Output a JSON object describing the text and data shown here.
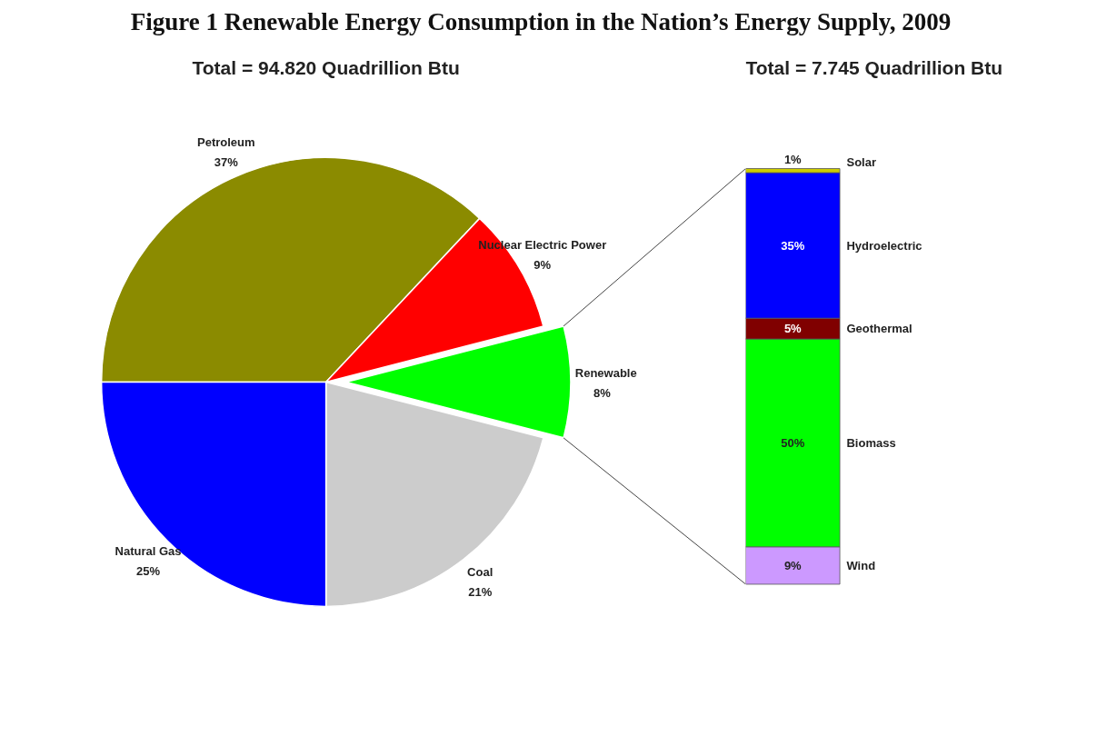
{
  "chart_data": [
    {
      "type": "pie",
      "title": "Figure 1 Renewable Energy Consumption in the Nation’s Energy Supply, 2009",
      "subtitle": "Total = 94.820 Quadrillion Btu",
      "categories": [
        "Petroleum",
        "Nuclear Electric Power",
        "Renewable",
        "Coal",
        "Natural Gas"
      ],
      "values": [
        37,
        9,
        8,
        21,
        25
      ],
      "colors": [
        "#8b8b00",
        "#ff0000",
        "#00ff00",
        "#cccccc",
        "#0000ff"
      ],
      "value_labels": [
        "37%",
        "9%",
        "8%",
        "21%",
        "25%"
      ]
    },
    {
      "type": "bar",
      "subtitle": "Total = 7.745 Quadrillion Btu",
      "stacked": true,
      "categories": [
        null
      ],
      "series": [
        {
          "name": "Wind",
          "color": "#cc99ff",
          "values": [
            9
          ],
          "value_labels": [
            "9%"
          ]
        },
        {
          "name": "Biomass",
          "color": "#00ff00",
          "values": [
            50
          ],
          "value_labels": [
            "50%"
          ]
        },
        {
          "name": "Geothermal",
          "color": "#800000",
          "values": [
            5
          ],
          "value_labels": [
            "5%"
          ]
        },
        {
          "name": "Hydroelectric",
          "color": "#0000ff",
          "values": [
            35
          ],
          "value_labels": [
            "35%"
          ]
        },
        {
          "name": "Solar",
          "color": "#cccc00",
          "values": [
            1
          ],
          "value_labels": [
            "1%"
          ]
        }
      ]
    }
  ]
}
